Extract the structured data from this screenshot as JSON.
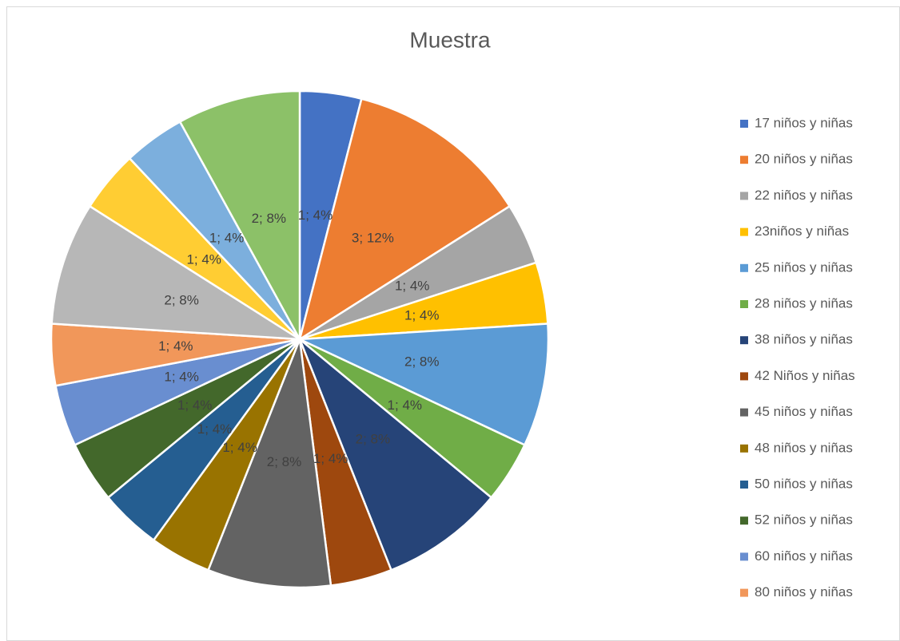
{
  "chart_data": {
    "type": "pie",
    "title": "Muestra",
    "categories": [
      "17 niños y niñas",
      "20 niños y niñas",
      "22 niños y niñas",
      "23niños y niñas",
      "25 niños  y niñas",
      "28 niños y niñas",
      "38 niños y niñas",
      "42  Niños y niñas",
      "45 niños y niñas",
      "48 niños y niñas",
      "50 niños y niñas",
      "52 niños y niñas",
      "60 niños y niñas",
      "80 niños y niñas",
      null,
      null,
      null,
      null
    ],
    "values": [
      1,
      3,
      1,
      1,
      2,
      1,
      2,
      1,
      2,
      1,
      1,
      1,
      1,
      1,
      2,
      1,
      1,
      2
    ],
    "value_labels": [
      "1; 4%",
      "3; 12%",
      "1; 4%",
      "1; 4%",
      "2; 8%",
      "1; 4%",
      "2; 8%",
      "1; 4%",
      "2; 8%",
      "1; 4%",
      "1; 4%",
      "1; 4%",
      "1; 4%",
      "1; 4%",
      "2; 8%",
      "1; 4%",
      "1; 4%",
      "2; 8%"
    ],
    "colors": [
      "#4472c4",
      "#ed7d31",
      "#a5a5a5",
      "#ffc000",
      "#5b9bd5",
      "#70ad47",
      "#264478",
      "#9e480e",
      "#636363",
      "#997300",
      "#255e91",
      "#43682b",
      "#698ed0",
      "#f1975a",
      "#b7b7b7",
      "#ffcd33",
      "#7cafdd",
      "#8cc168"
    ],
    "legend": "right"
  }
}
